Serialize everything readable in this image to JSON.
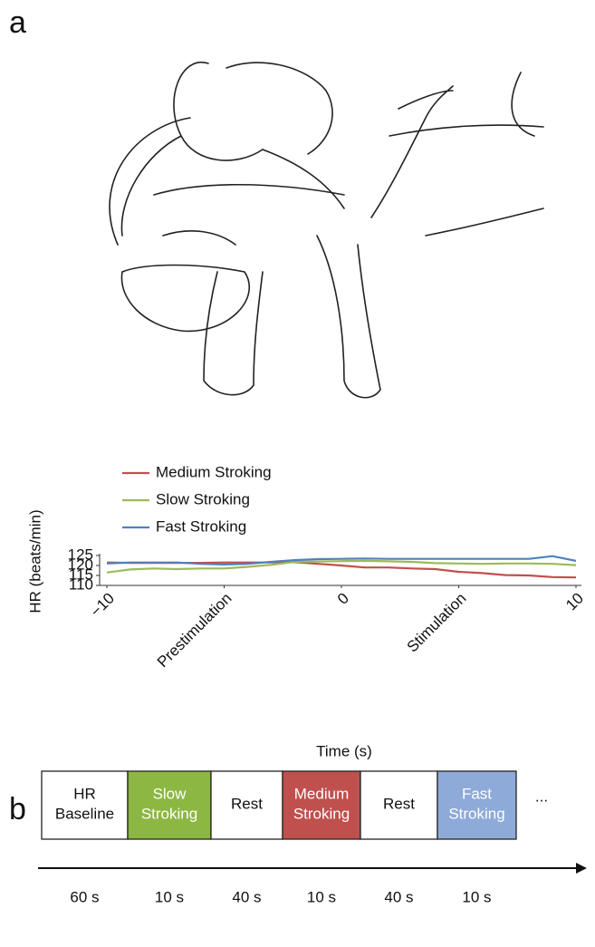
{
  "panel_a": {
    "label": "a"
  },
  "chart_data": {
    "type": "line",
    "x": [
      -10,
      -9,
      -8,
      -7,
      -6,
      -5,
      -4,
      -3,
      -2,
      -1,
      0,
      1,
      2,
      3,
      4,
      5,
      6,
      7,
      8,
      9,
      10
    ],
    "series": [
      {
        "name": "Medium Stroking",
        "color": "#c0504d",
        "values": [
          121.5,
          121.3,
          121.3,
          121.3,
          121.3,
          121.5,
          121.5,
          121.5,
          121.7,
          120.8,
          120,
          119,
          119,
          118.5,
          118.2,
          116.8,
          116.2,
          115.2,
          115,
          114.2,
          114
        ]
      },
      {
        "name": "Slow Stroking",
        "color": "#9bbb59",
        "values": [
          116.5,
          118,
          118.5,
          118.2,
          118.5,
          118.5,
          119.3,
          120.3,
          121.8,
          122,
          122.2,
          122.3,
          122.1,
          121.8,
          121.2,
          121,
          120.8,
          121,
          121,
          120.8,
          120.2
        ]
      },
      {
        "name": "Fast Stroking",
        "color": "#4f81bd",
        "values": [
          121,
          121.5,
          121.5,
          121.5,
          120.8,
          120.5,
          120.8,
          121.8,
          122.7,
          123.2,
          123.3,
          123.5,
          123.3,
          123.3,
          123.3,
          123.3,
          123.3,
          123.3,
          123.3,
          124.7,
          122.3
        ]
      }
    ],
    "xlim": [
      -10,
      10
    ],
    "xticks": [
      {
        "value": -10,
        "label": "−10"
      },
      {
        "value": -5,
        "label": "Prestimulation"
      },
      0,
      {
        "value": 5,
        "label": "Stimulation"
      },
      10
    ],
    "ylim": [
      110,
      125
    ],
    "yticks": [
      110,
      115,
      120,
      125
    ],
    "x_label": "Time (s)",
    "y_label": "HR (beats/min)"
  },
  "panel_b": {
    "label": "b",
    "boxes": [
      {
        "lines": [
          "HR",
          "Baseline"
        ],
        "color": "#ffffff",
        "text_color": "#111111"
      },
      {
        "lines": [
          "Slow",
          "Stroking"
        ],
        "color": "#8db743",
        "text_color": "#ffffff"
      },
      {
        "lines": [
          "Rest"
        ],
        "color": "#ffffff",
        "text_color": "#111111"
      },
      {
        "lines": [
          "Medium",
          "Stroking"
        ],
        "color": "#c0504d",
        "text_color": "#ffffff"
      },
      {
        "lines": [
          "Rest"
        ],
        "color": "#ffffff",
        "text_color": "#111111"
      },
      {
        "lines": [
          "Fast",
          "Stroking"
        ],
        "color": "#8eaad8",
        "text_color": "#ffffff"
      }
    ],
    "ellipsis": "...",
    "durations": [
      "60 s",
      "10 s",
      "40 s",
      "10 s",
      "40 s",
      "10 s"
    ]
  }
}
